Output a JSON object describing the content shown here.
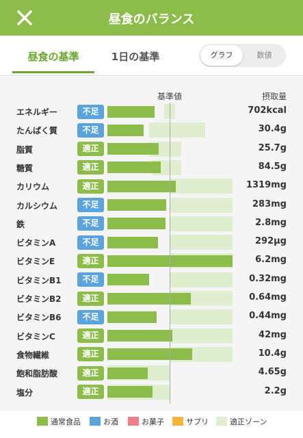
{
  "header": {
    "title": "昼食のバランス"
  },
  "tabs": [
    "昼食の基準",
    "1日の基準"
  ],
  "toggle": [
    "グラフ",
    "数値"
  ],
  "columns": {
    "standard": "基準値",
    "intake": "摂取量"
  },
  "standard": {
    "value": 100
  },
  "rows": [
    {
      "label": "エネルギー",
      "status": "不足",
      "amount": "702kcal",
      "intake_percent": 76,
      "zone": [
        91,
        109
      ]
    },
    {
      "label": "たんぱく質",
      "status": "不足",
      "amount": "30.4g",
      "intake_percent": 58,
      "zone": [
        67,
        157
      ]
    },
    {
      "label": "脂質",
      "status": "適正",
      "amount": "25.7g",
      "intake_percent": 82,
      "zone": [
        67,
        119
      ]
    },
    {
      "label": "糖質",
      "status": "適正",
      "amount": "84.5g",
      "intake_percent": 86,
      "zone": [
        71,
        119
      ]
    },
    {
      "label": "カリウム",
      "status": "適正",
      "amount": "1319mg",
      "intake_percent": 110,
      "zone": [
        100,
        201
      ]
    },
    {
      "label": "カルシウム",
      "status": "不足",
      "amount": "283mg",
      "intake_percent": 95,
      "zone": [
        100,
        201
      ]
    },
    {
      "label": "鉄",
      "status": "不足",
      "amount": "2.8mg",
      "intake_percent": 93,
      "zone": [
        100,
        201
      ]
    },
    {
      "label": "ビタミンA",
      "status": "不足",
      "amount": "292µg",
      "intake_percent": 81,
      "zone": [
        100,
        201
      ]
    },
    {
      "label": "ビタミンE",
      "status": "適正",
      "amount": "6.2mg",
      "intake_percent": 201,
      "zone": [
        100,
        201
      ]
    },
    {
      "label": "ビタミンB1",
      "status": "不足",
      "amount": "0.32mg",
      "intake_percent": 67,
      "zone": [
        100,
        201
      ]
    },
    {
      "label": "ビタミンB2",
      "status": "適正",
      "amount": "0.64mg",
      "intake_percent": 134,
      "zone": [
        100,
        201
      ]
    },
    {
      "label": "ビタミンB6",
      "status": "不足",
      "amount": "0.44mg",
      "intake_percent": 79,
      "zone": [
        100,
        201
      ]
    },
    {
      "label": "ビタミンC",
      "status": "適正",
      "amount": "42mg",
      "intake_percent": 104,
      "zone": [
        100,
        201
      ]
    },
    {
      "label": "食物繊維",
      "status": "適正",
      "amount": "10.4g",
      "intake_percent": 136,
      "zone": [
        100,
        201
      ]
    },
    {
      "label": "飽和脂肪酸",
      "status": "適正",
      "amount": "4.65g",
      "intake_percent": 65,
      "zone": [
        0,
        100
      ]
    },
    {
      "label": "塩分",
      "status": "適正",
      "amount": "2.2g",
      "intake_percent": 73,
      "zone": [
        0,
        100
      ]
    }
  ],
  "legend": [
    {
      "label": "通常食品",
      "color": "#8cbd4a"
    },
    {
      "label": "お酒",
      "color": "#5aa3dc"
    },
    {
      "label": "お菓子",
      "color": "#f07f86"
    },
    {
      "label": "サプリ",
      "color": "#f7b43a"
    },
    {
      "label": "適正ゾーン",
      "color": "#dfeecf"
    }
  ],
  "status_colors": {
    "不足": "#5aa3dc",
    "適正": "#8cbd4a"
  }
}
